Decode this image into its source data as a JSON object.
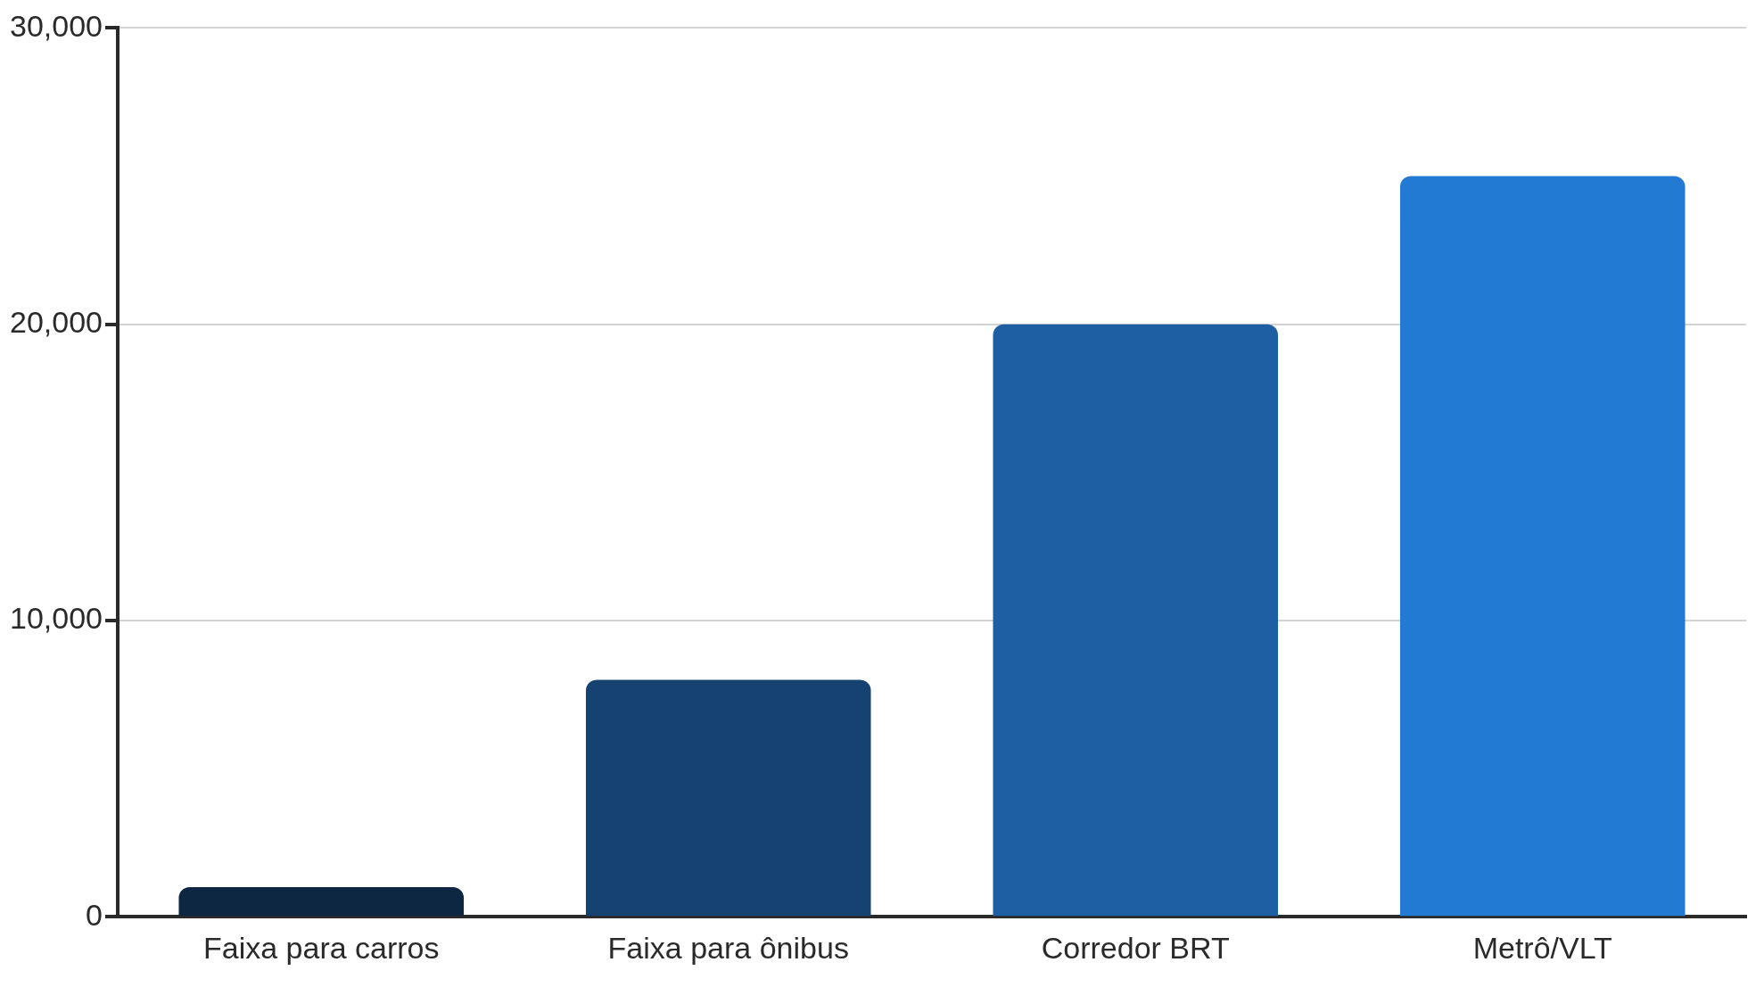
{
  "chart_data": {
    "type": "bar",
    "categories": [
      "Faixa para carros",
      "Faixa para ônibus",
      "Corredor BRT",
      "Metrô/VLT"
    ],
    "values": [
      1000,
      8000,
      20000,
      25000
    ],
    "colors": [
      "#0d2742",
      "#154270",
      "#1e5fa3",
      "#237ad3"
    ],
    "ylim": [
      0,
      30000
    ],
    "yticks": [
      {
        "value": 0,
        "label": "0"
      },
      {
        "value": 10000,
        "label": "10,000"
      },
      {
        "value": 20000,
        "label": "20,000"
      },
      {
        "value": 30000,
        "label": "30,000"
      }
    ],
    "grid": "y",
    "legend": false
  }
}
